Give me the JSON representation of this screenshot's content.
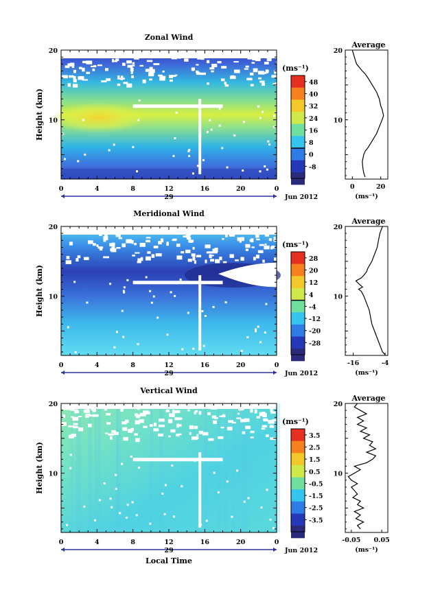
{
  "chart_data": [
    {
      "type": "heatmap",
      "title": "Zonal Wind",
      "ylabel": "Height (km)",
      "xlabel": "",
      "x_ticks": [
        "0",
        "4",
        "8",
        "12",
        "16",
        "20",
        "0"
      ],
      "y_ticks": [
        "10",
        "20"
      ],
      "xlim": [
        0,
        24
      ],
      "ylim": [
        1.5,
        20
      ],
      "date_label": "29",
      "month_label": "Jun 2012",
      "colorbar": {
        "unit": "(ms⁻¹)",
        "labels": [
          "48",
          "40",
          "32",
          "24",
          "16",
          "8",
          "0",
          "-8"
        ],
        "range": [
          -8,
          48
        ]
      },
      "profile": {
        "title": "Average",
        "x_ticks": [
          "0",
          "20"
        ],
        "y_ticks": [
          "10",
          "20"
        ],
        "xlim": [
          -5,
          25
        ],
        "xlabel": "(ms⁻¹)",
        "points": [
          [
            9,
            1.8
          ],
          [
            8,
            2.4
          ],
          [
            7.5,
            3
          ],
          [
            7,
            4
          ],
          [
            8,
            5
          ],
          [
            9,
            5.5
          ],
          [
            11,
            6
          ],
          [
            14,
            7
          ],
          [
            17,
            8
          ],
          [
            19,
            9
          ],
          [
            21,
            10
          ],
          [
            22,
            10.6
          ],
          [
            21,
            11.5
          ],
          [
            20,
            12
          ],
          [
            19,
            13
          ],
          [
            17,
            14
          ],
          [
            14,
            15
          ],
          [
            11,
            16
          ],
          [
            9,
            16.6
          ],
          [
            7,
            17
          ],
          [
            5,
            17.5
          ],
          [
            3,
            18
          ],
          [
            2,
            18.6
          ],
          [
            1,
            19.3
          ],
          [
            0,
            20
          ]
        ]
      }
    },
    {
      "type": "heatmap",
      "title": "Meridional Wind",
      "ylabel": "Height (km)",
      "xlabel": "",
      "x_ticks": [
        "0",
        "4",
        "8",
        "12",
        "16",
        "20",
        "0"
      ],
      "y_ticks": [
        "10",
        "20"
      ],
      "xlim": [
        0,
        24
      ],
      "ylim": [
        1.5,
        20
      ],
      "date_label": "29",
      "month_label": "Jun 2012",
      "colorbar": {
        "unit": "(ms⁻¹)",
        "labels": [
          "28",
          "20",
          "12",
          "4",
          "-4",
          "-12",
          "-20",
          "-28"
        ],
        "range": [
          -28,
          28
        ]
      },
      "profile": {
        "title": "Average",
        "x_ticks": [
          "-16",
          "-4"
        ],
        "y_ticks": [
          "10",
          "20"
        ],
        "xlim": [
          -19,
          -3
        ],
        "xlabel": "(ms⁻¹)",
        "points": [
          [
            -4,
            1.6
          ],
          [
            -5,
            2
          ],
          [
            -6,
            3
          ],
          [
            -7,
            4
          ],
          [
            -8,
            5
          ],
          [
            -9,
            6
          ],
          [
            -9.5,
            7
          ],
          [
            -10,
            8
          ],
          [
            -11,
            9
          ],
          [
            -12,
            10
          ],
          [
            -13,
            10.7
          ],
          [
            -14,
            11
          ],
          [
            -12.5,
            11.3
          ],
          [
            -14,
            11.8
          ],
          [
            -15,
            12.2
          ],
          [
            -13,
            12.6
          ],
          [
            -12,
            13
          ],
          [
            -11,
            13.5
          ],
          [
            -10.5,
            14
          ],
          [
            -9,
            15
          ],
          [
            -8,
            16
          ],
          [
            -7.5,
            16.5
          ],
          [
            -7,
            17
          ],
          [
            -6.5,
            18
          ],
          [
            -6,
            19
          ],
          [
            -5.5,
            19.5
          ],
          [
            -5,
            20
          ]
        ]
      }
    },
    {
      "type": "heatmap",
      "title": "Vertical Wind",
      "ylabel": "Height (km)",
      "xlabel": "Local Time",
      "x_ticks": [
        "0",
        "4",
        "8",
        "12",
        "16",
        "20",
        "0"
      ],
      "y_ticks": [
        "10",
        "20"
      ],
      "xlim": [
        0,
        24
      ],
      "ylim": [
        1.5,
        20
      ],
      "date_label": "29",
      "month_label": "Jun 2012",
      "colorbar": {
        "unit": "(ms⁻¹)",
        "labels": [
          "3.5",
          "2.5",
          "1.5",
          "0.5",
          "-0.5",
          "-1.5",
          "-2.5",
          "-3.5"
        ],
        "range": [
          -3.5,
          3.5
        ]
      },
      "profile": {
        "title": "Average",
        "x_ticks": [
          "-0.05",
          "0.05"
        ],
        "y_ticks": [
          "10",
          "20"
        ],
        "xlim": [
          -0.07,
          0.07
        ],
        "xlabel": "(ms⁻¹)",
        "points": [
          [
            -0.02,
            2
          ],
          [
            -0.03,
            2.5
          ],
          [
            -0.01,
            3
          ],
          [
            -0.035,
            3.5
          ],
          [
            -0.02,
            4
          ],
          [
            -0.04,
            4.5
          ],
          [
            -0.01,
            5
          ],
          [
            -0.03,
            5.5
          ],
          [
            -0.02,
            6
          ],
          [
            -0.045,
            6.5
          ],
          [
            -0.03,
            7
          ],
          [
            -0.04,
            7.5
          ],
          [
            -0.05,
            8
          ],
          [
            -0.03,
            8.5
          ],
          [
            -0.05,
            9
          ],
          [
            -0.06,
            9.5
          ],
          [
            -0.04,
            10
          ],
          [
            -0.02,
            10.5
          ],
          [
            -0.04,
            11
          ],
          [
            0.0,
            11.5
          ],
          [
            0.02,
            12
          ],
          [
            0.03,
            12.5
          ],
          [
            0.0,
            13
          ],
          [
            0.03,
            13.5
          ],
          [
            0.01,
            14
          ],
          [
            0.02,
            14.5
          ],
          [
            -0.01,
            15
          ],
          [
            0.01,
            15.5
          ],
          [
            -0.02,
            16
          ],
          [
            0.0,
            16.5
          ],
          [
            -0.03,
            17
          ],
          [
            -0.01,
            17.5
          ],
          [
            -0.03,
            18
          ],
          [
            0.0,
            18.5
          ],
          [
            -0.02,
            19
          ],
          [
            -0.04,
            19.5
          ],
          [
            -0.03,
            20
          ]
        ]
      }
    }
  ]
}
